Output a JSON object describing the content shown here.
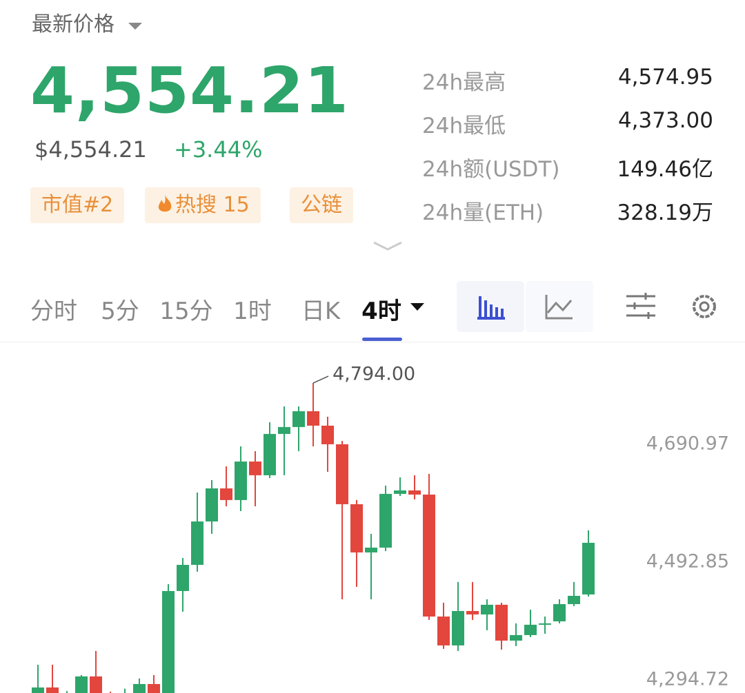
{
  "header": {
    "title": "最新价格",
    "price": "4,554.21",
    "usd_price": "$4,554.21",
    "change": "+3.44%",
    "tags": [
      "市值#2",
      "热搜 15",
      "公链"
    ]
  },
  "stats": [
    {
      "label": "24h最高",
      "value": "4,574.95"
    },
    {
      "label": "24h最低",
      "value": "4,373.00"
    },
    {
      "label": "24h额(USDT)",
      "value": "149.46亿"
    },
    {
      "label": "24h量(ETH)",
      "value": "328.19万"
    }
  ],
  "tabs": [
    "分时",
    "5分",
    "15分",
    "1时",
    "日K",
    "4时"
  ],
  "active_tab": 5,
  "chart_data": {
    "type": "candlestick",
    "up_color": "#2ea56a",
    "down_color": "#e2463d",
    "open": [
      4260,
      4282.0,
      4262,
      4265,
      4300.6,
      4268,
      4258,
      4268,
      4287.8,
      4270,
      4444.2,
      4488.2,
      4561.2,
      4616.8,
      4597.2,
      4662.0,
      4638.9,
      4708.4,
      4720.0,
      4746.6,
      4722.3,
      4691.0,
      4590.2,
      4509.1,
      4517.2,
      4607.6,
      4613.4,
      4606.4,
      4401.3,
      4352.7,
      4410.6,
      4404.8,
      4421.1,
      4360.8,
      4370.1,
      4387.5,
      4393.2,
      4422.2,
      4438.4
    ],
    "high": [
      4320.2,
      4320.2,
      4276,
      4302.9,
      4343.4,
      4275,
      4280.0,
      4297.1,
      4302.9,
      4455.8,
      4499.8,
      4609.9,
      4630.8,
      4653.9,
      4687.5,
      4679.4,
      4728.1,
      4754.7,
      4754.7,
      4794.0,
      4737.3,
      4696.8,
      4597.2,
      4540.4,
      4621.5,
      4635.4,
      4638.9,
      4641.2,
      4424.5,
      4459.3,
      4459.3,
      4430.3,
      4424.5,
      4389.8,
      4412.9,
      4401.3,
      4430.3,
      4459.3,
      4546.2
    ],
    "low": [
      4250,
      4255,
      4250,
      4255,
      4260,
      4250,
      4250,
      4260,
      4262,
      4265,
      4409.5,
      4476.7,
      4540.4,
      4586.7,
      4578.6,
      4586.7,
      4634.2,
      4638.9,
      4679.4,
      4687.5,
      4644.7,
      4430.3,
      4451.2,
      4430.3,
      4511.4,
      4604.1,
      4598.3,
      4395.6,
      4346.9,
      4343.4,
      4395.6,
      4378.2,
      4345.7,
      4351.5,
      4366.6,
      4372.4,
      4389.8,
      4418.7,
      4434.9
    ],
    "close": [
      4282.0,
      4265,
      4270,
      4300.6,
      4268,
      4258,
      4272,
      4287.8,
      4270,
      4444.2,
      4488.2,
      4561.2,
      4616.8,
      4597.2,
      4662.0,
      4638.9,
      4708.4,
      4720.0,
      4746.6,
      4722.3,
      4691.0,
      4590.2,
      4509.1,
      4517.2,
      4607.6,
      4613.4,
      4606.4,
      4401.3,
      4352.7,
      4410.6,
      4404.8,
      4421.1,
      4360.8,
      4370.1,
      4387.5,
      4389.8,
      4422.2,
      4436.1,
      4525.3
    ],
    "ylim": [
      4272.7,
      4862.4
    ],
    "yticks": [
      {
        "value": 4690.97,
        "label": "4,690.97"
      },
      {
        "value": 4492.85,
        "label": "4,492.85"
      },
      {
        "value": 4294.72,
        "label": "4,294.72"
      }
    ],
    "high_annotation": {
      "value": 4794,
      "label": "4,794.00"
    }
  }
}
